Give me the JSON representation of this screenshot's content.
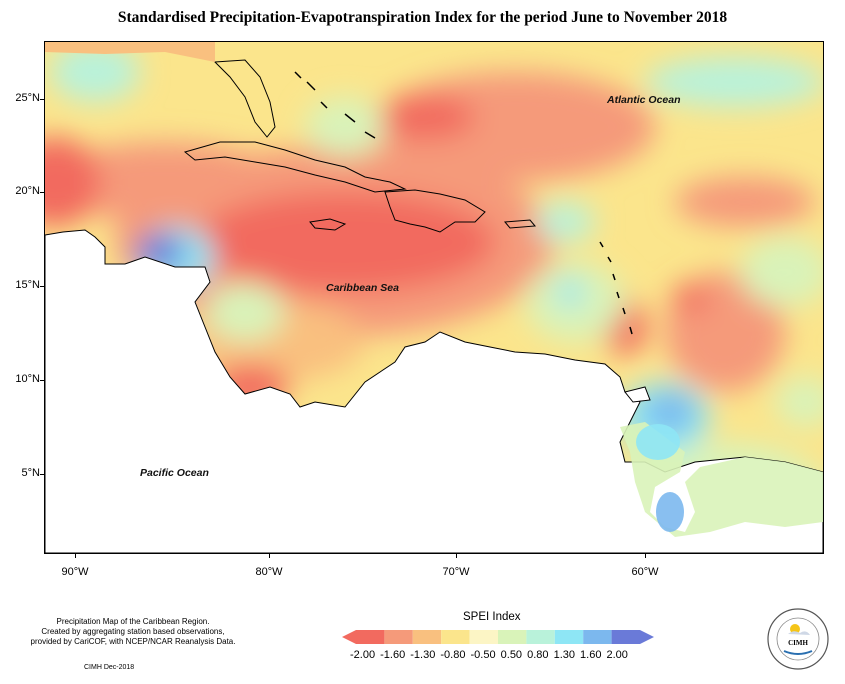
{
  "title": "Standardised Precipitation-Evapotranspiration Index for the period June to November 2018",
  "map": {
    "lat_labels": [
      "25°N",
      "20°N",
      "15°N",
      "10°N",
      "5°N"
    ],
    "lon_labels": [
      "90°W",
      "80°W",
      "70°W",
      "60°W"
    ],
    "places": {
      "atlantic": "Atlantic Ocean",
      "caribbean": "Caribbean Sea",
      "pacific": "Pacific Ocean"
    }
  },
  "legend": {
    "title": "SPEI Index",
    "labels_text": "-2.00 -1.60 -1.30 -0.80 -0.50  0.50  0.80  1.30  1.60  2.00",
    "colors": [
      "#f26a5f",
      "#f59a7a",
      "#f9c07f",
      "#fbe58c",
      "#fcf5c5",
      "#d9f3b9",
      "#b9f2da",
      "#8ee6f5",
      "#7cb8ee",
      "#6a7ad8"
    ]
  },
  "footer": {
    "note_lines": [
      "Precipitation Map of the Caribbean Region.",
      "Created by aggregating station based observations,",
      "provided by CariCOF, with NCEP/NCAR Reanalysis Data."
    ],
    "credit": "CIMH Dec-2018",
    "logo_text": "CIMH"
  }
}
